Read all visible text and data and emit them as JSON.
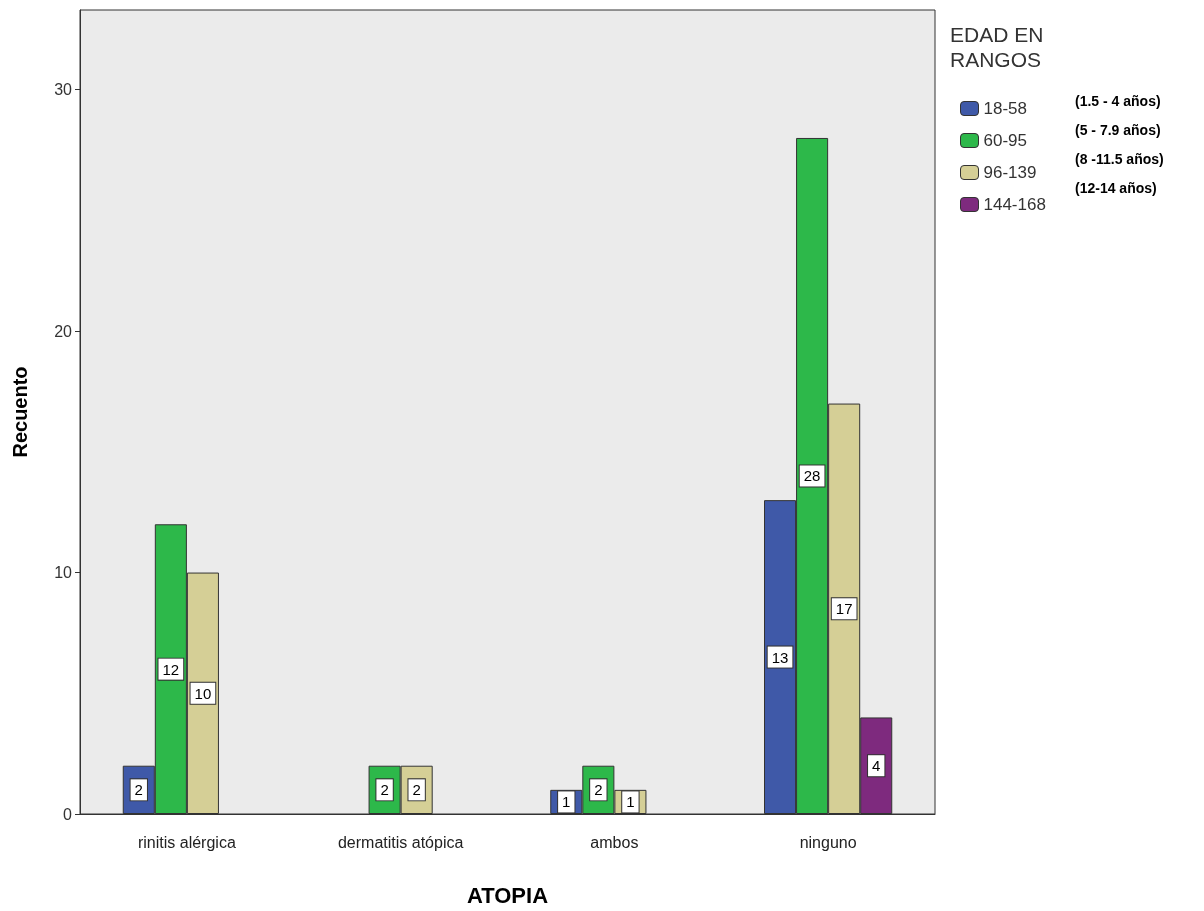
{
  "chart_data": {
    "type": "bar",
    "xlabel": "ATOPIA",
    "ylabel": "Recuento",
    "legend_title": "EDAD EN\nRANGOS",
    "categories": [
      "rinitis alérgica",
      "dermatitis atópica",
      "ambos",
      "ninguno"
    ],
    "series": [
      {
        "name": "18-58",
        "color": "#3f59a8",
        "values": [
          2,
          null,
          1,
          13
        ]
      },
      {
        "name": "60-95",
        "color": "#2db84a",
        "values": [
          12,
          2,
          2,
          28
        ]
      },
      {
        "name": "96-139",
        "color": "#d5cf96",
        "values": [
          10,
          2,
          1,
          17
        ]
      },
      {
        "name": "144-168",
        "color": "#7e2a7e",
        "values": [
          null,
          null,
          null,
          4
        ]
      }
    ],
    "annotations": [
      "(1.5 - 4 años)",
      "(5 - 7.9 años)",
      "(8 -11.5 años)",
      "(12-14 años)"
    ],
    "ylim": [
      0,
      33.3
    ],
    "yticks": [
      0,
      10,
      20,
      30
    ],
    "data_labels": true,
    "grid": false,
    "legend": "top right"
  }
}
